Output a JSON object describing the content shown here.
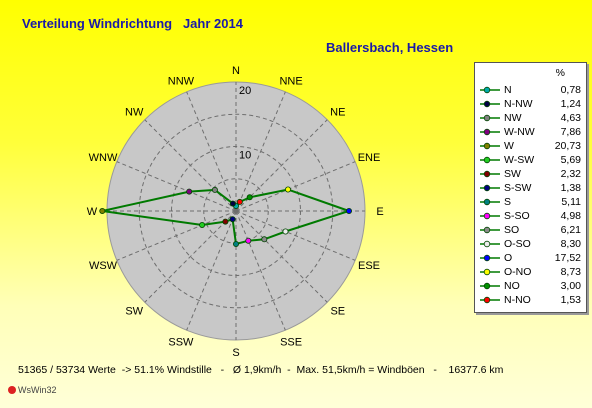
{
  "header": {
    "title": "Verteilung Windrichtung   Jahr 2014",
    "location": "Ballersbach, Hessen"
  },
  "chart_data": {
    "type": "radar",
    "unit": "%",
    "rmax": 20,
    "ring_labels": [
      "20",
      "10"
    ],
    "grid": true,
    "series_color": "#007a00",
    "compass_labels": [
      "N",
      "NNE",
      "NE",
      "ENE",
      "E",
      "ESE",
      "SE",
      "SSE",
      "S",
      "SSW",
      "SW",
      "WSW",
      "W",
      "WNW",
      "NW",
      "NNW"
    ],
    "directions": [
      {
        "name": "N",
        "value": 0.78,
        "color": "#00aaaa"
      },
      {
        "name": "N-NW",
        "value": 1.24,
        "color": "#000044"
      },
      {
        "name": "NW",
        "value": 4.63,
        "color": "#808080"
      },
      {
        "name": "W-NW",
        "value": 7.86,
        "color": "#800080"
      },
      {
        "name": "W",
        "value": 20.73,
        "color": "#808000"
      },
      {
        "name": "W-SW",
        "value": 5.69,
        "color": "#22cc22"
      },
      {
        "name": "SW",
        "value": 2.32,
        "color": "#800000"
      },
      {
        "name": "S-SW",
        "value": 1.38,
        "color": "#000080"
      },
      {
        "name": "S",
        "value": 5.11,
        "color": "#008080"
      },
      {
        "name": "S-SO",
        "value": 4.98,
        "color": "#ff00ff"
      },
      {
        "name": "SO",
        "value": 6.21,
        "color": "#8a8a8a"
      },
      {
        "name": "O-SO",
        "value": 8.3,
        "color": "#eeeeee"
      },
      {
        "name": "O",
        "value": 17.52,
        "color": "#0000ff"
      },
      {
        "name": "O-NO",
        "value": 8.73,
        "color": "#ffff00"
      },
      {
        "name": "NO",
        "value": 3.0,
        "color": "#009000"
      },
      {
        "name": "N-NO",
        "value": 1.53,
        "color": "#ff0000"
      }
    ]
  },
  "footer": {
    "stats": "51365 / 53734 Werte  -> 51.1% Windstille   -   Ø 1,9km/h  -  Max. 51,5km/h = Windböen   -    16377.6 km",
    "credit": "WsWin32"
  }
}
